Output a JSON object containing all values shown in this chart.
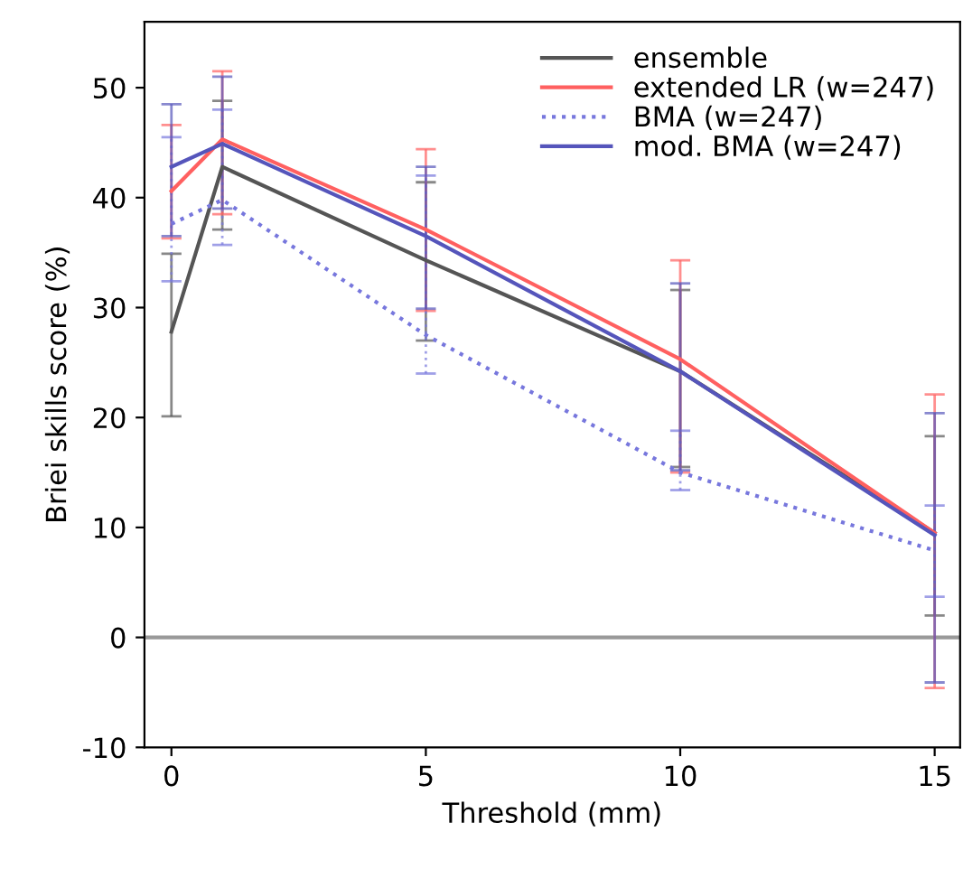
{
  "chart_data": {
    "type": "line",
    "xlabel": "Threshold (mm)",
    "ylabel": "Briei skills score (%)",
    "x": [
      0,
      1,
      5,
      10,
      15
    ],
    "xlim": [
      -0.53,
      15.5
    ],
    "xticks": [
      0,
      5,
      10,
      15
    ],
    "ylim": [
      -10,
      56
    ],
    "yticks": [
      -10,
      0,
      10,
      20,
      30,
      40,
      50
    ],
    "grid": false,
    "legend": "top right",
    "marker": "none",
    "ref_lines": [
      {
        "axis": "y",
        "value": 0,
        "color": "#999999"
      }
    ],
    "series": [
      {
        "name": "ensemble",
        "color": "#555555",
        "line_style": "solid",
        "values": [
          27.8,
          42.8,
          34.3,
          24.2,
          9.5
        ],
        "errors": [
          [
            20.1,
            34.9
          ],
          [
            37.1,
            48.8
          ],
          [
            27.0,
            41.4
          ],
          [
            15.5,
            31.6
          ],
          [
            2.0,
            18.3
          ]
        ]
      },
      {
        "name": "extended LR (w=247)",
        "color": "#ff6060",
        "line_style": "solid",
        "values": [
          40.6,
          45.3,
          37.1,
          25.3,
          9.5
        ],
        "errors": [
          [
            36.3,
            46.6
          ],
          [
            38.5,
            51.5
          ],
          [
            29.7,
            44.4
          ],
          [
            15.0,
            34.3
          ],
          [
            -4.6,
            22.1
          ]
        ]
      },
      {
        "name": "BMA (w=247)",
        "color": "#7777dd",
        "line_style": "dotted",
        "values": [
          37.6,
          39.8,
          27.5,
          15.0,
          7.9
        ],
        "errors": [
          [
            32.4,
            45.5
          ],
          [
            35.7,
            48.0
          ],
          [
            24.0,
            42.0
          ],
          [
            13.4,
            18.8
          ],
          [
            3.7,
            12.0
          ]
        ]
      },
      {
        "name": "mod. BMA (w=247)",
        "color": "#5555bb",
        "line_style": "solid",
        "values": [
          42.8,
          44.9,
          36.5,
          24.2,
          9.3
        ],
        "errors": [
          [
            36.5,
            48.5
          ],
          [
            39.0,
            51.0
          ],
          [
            29.9,
            42.8
          ],
          [
            15.2,
            32.2
          ],
          [
            -4.1,
            20.4
          ]
        ]
      }
    ]
  }
}
